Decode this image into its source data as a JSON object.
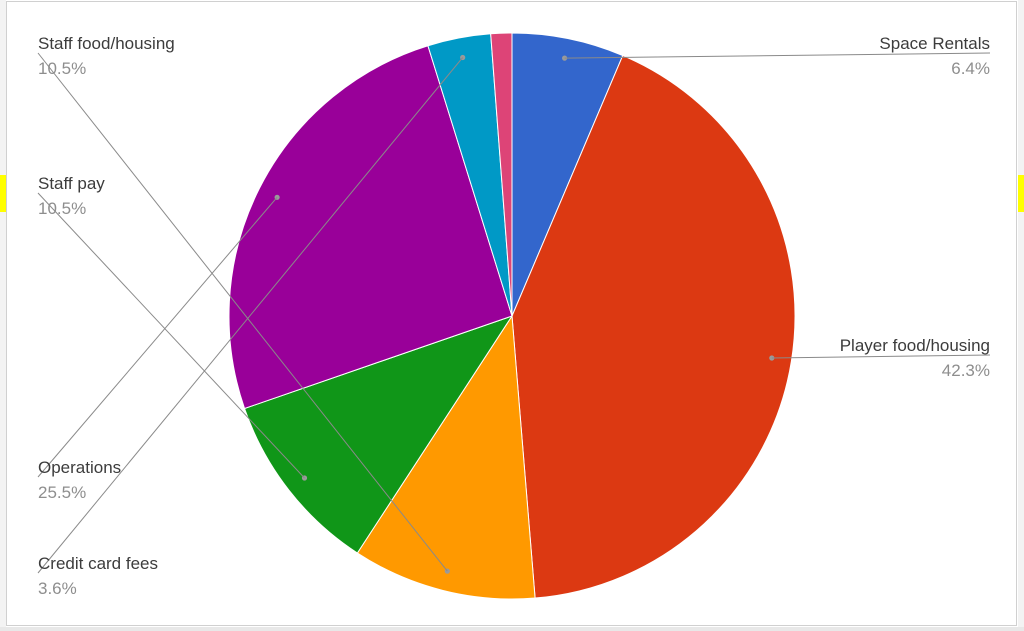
{
  "chart_data": {
    "type": "pie",
    "title": "",
    "slices": [
      {
        "label": "Space Rentals",
        "value": 6.4,
        "display": "6.4%",
        "color": "#3366cc",
        "label_side": "right"
      },
      {
        "label": "Player food/housing",
        "value": 42.3,
        "display": "42.3%",
        "color": "#dc3912",
        "label_side": "right"
      },
      {
        "label": "Staff food/housing",
        "value": 10.5,
        "display": "10.5%",
        "color": "#ff9900",
        "label_side": "left"
      },
      {
        "label": "Staff pay",
        "value": 10.5,
        "display": "10.5%",
        "color": "#109618",
        "label_side": "left"
      },
      {
        "label": "Operations",
        "value": 25.5,
        "display": "25.5%",
        "color": "#990099",
        "label_side": "left"
      },
      {
        "label": "Credit card fees",
        "value": 3.6,
        "display": "3.6%",
        "color": "#0099c6",
        "label_side": "left"
      },
      {
        "label": "",
        "value": 1.2,
        "display": "",
        "color": "#dd4477",
        "label_side": "none"
      }
    ],
    "start_angle": "top",
    "direction": "clockwise",
    "legend": "labels-with-leader-lines"
  }
}
